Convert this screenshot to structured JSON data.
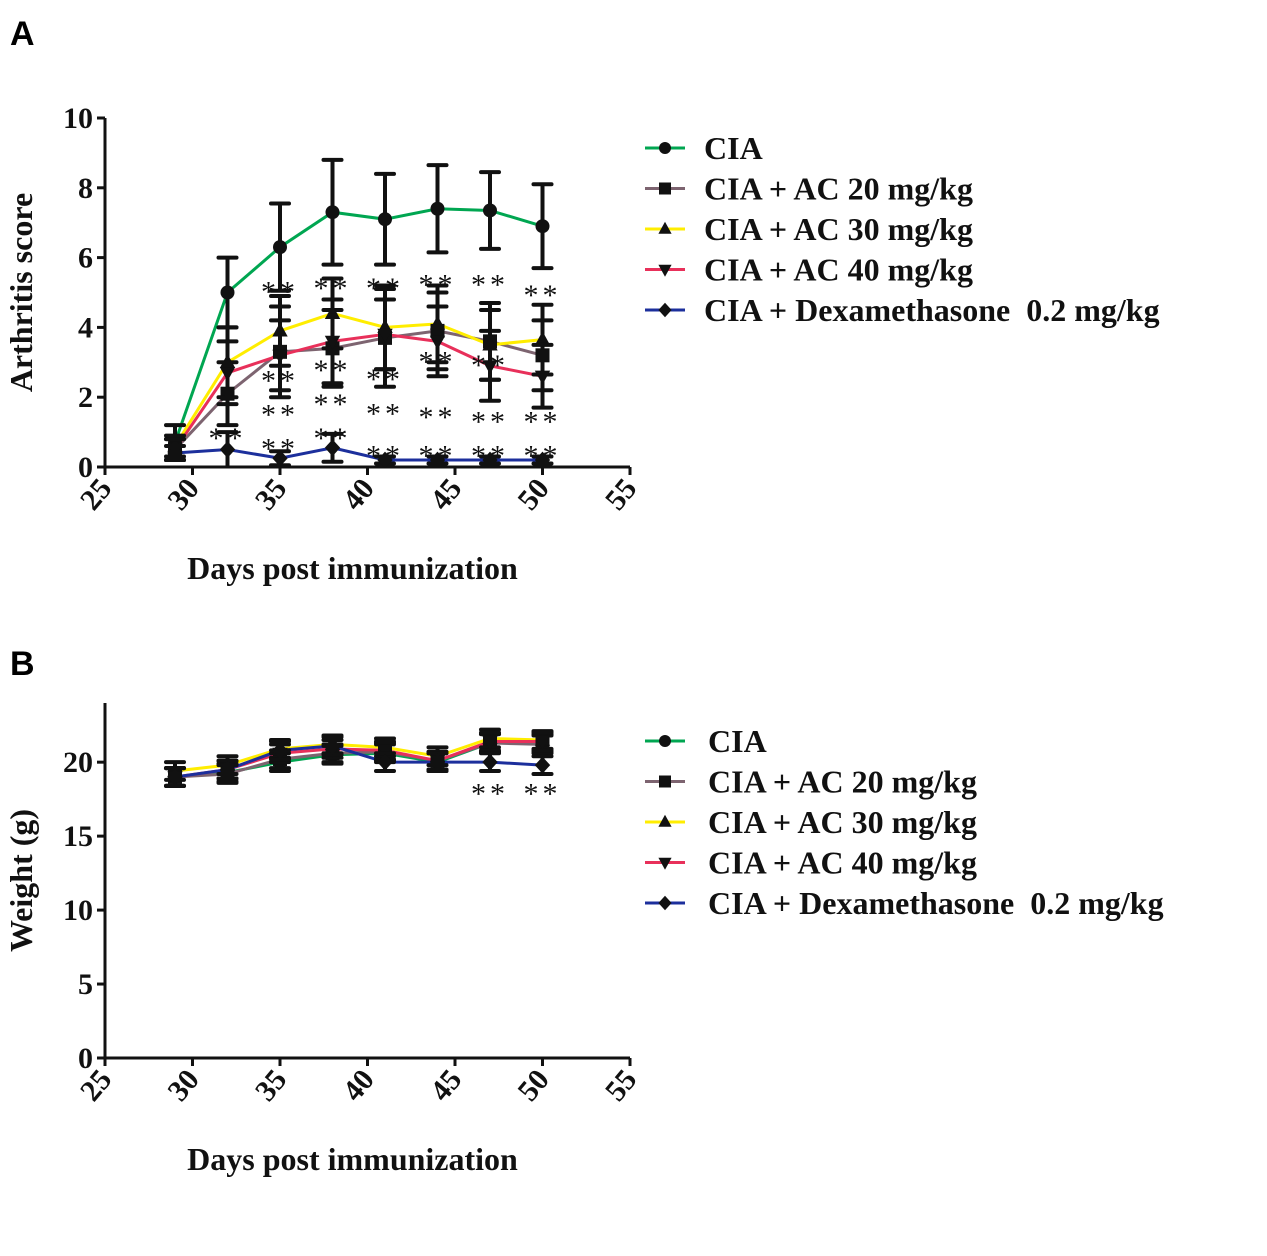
{
  "chart_data": [
    {
      "panel": "A",
      "type": "line",
      "xlabel": "Days post immunization",
      "ylabel": "Arthritis score",
      "xlim": [
        25,
        55
      ],
      "xticks": [
        25,
        30,
        35,
        40,
        45,
        50,
        55
      ],
      "ylim": [
        0,
        10
      ],
      "yticks": [
        0,
        2,
        4,
        6,
        8,
        10
      ],
      "x": [
        29,
        32,
        35,
        38,
        41,
        44,
        47,
        50
      ],
      "legend_position": "right",
      "series": [
        {
          "name": "CIA",
          "color": "#00a651",
          "marker": "circle",
          "values": [
            0.7,
            5.0,
            6.3,
            7.3,
            7.1,
            7.4,
            7.35,
            6.9
          ],
          "errors": [
            0.5,
            1.0,
            1.25,
            1.5,
            1.3,
            1.25,
            1.1,
            1.2
          ]
        },
        {
          "name": "CIA + AC 20 mg/kg",
          "color": "#7d6470",
          "marker": "square",
          "values": [
            0.5,
            2.1,
            3.3,
            3.4,
            3.7,
            3.9,
            3.6,
            3.2
          ],
          "errors": [
            0.3,
            0.9,
            1.3,
            1.1,
            1.4,
            1.1,
            1.1,
            1.0
          ]
        },
        {
          "name": "CIA + AC 30 mg/kg",
          "color": "#ffed00",
          "marker": "triangle-up",
          "values": [
            0.6,
            3.0,
            3.9,
            4.4,
            4.0,
            4.1,
            3.5,
            3.65
          ],
          "errors": [
            0.3,
            1.0,
            1.0,
            1.0,
            1.2,
            1.1,
            1.0,
            1.0
          ]
        },
        {
          "name": "CIA + AC 40 mg/kg",
          "color": "#e8305a",
          "marker": "triangle-down",
          "values": [
            0.5,
            2.7,
            3.2,
            3.6,
            3.8,
            3.6,
            2.9,
            2.6
          ],
          "errors": [
            0.3,
            0.9,
            1.0,
            1.2,
            1.0,
            1.0,
            1.0,
            0.9
          ]
        },
        {
          "name": "CIA + Dexamethasone  0.2 mg/kg",
          "color": "#1c2f9c",
          "marker": "diamond",
          "values": [
            0.4,
            0.5,
            0.25,
            0.55,
            0.2,
            0.2,
            0.2,
            0.2
          ],
          "errors": [
            0.2,
            0.5,
            0.2,
            0.4,
            0.1,
            0.1,
            0.1,
            0.1
          ]
        }
      ],
      "annotations": [
        {
          "text": "**",
          "x": 32,
          "y": 1.0
        },
        {
          "text": "**",
          "x": 35,
          "y": 5.2
        },
        {
          "text": "**",
          "x": 35,
          "y": 2.5
        },
        {
          "text": "**",
          "x": 35,
          "y": 1.4
        },
        {
          "text": "**",
          "x": 35,
          "y": 0.7
        },
        {
          "text": "**",
          "x": 38,
          "y": 5.3
        },
        {
          "text": "**",
          "x": 38,
          "y": 2.5
        },
        {
          "text": "**",
          "x": 38,
          "y": 1.5
        },
        {
          "text": "**",
          "x": 38,
          "y": 1.0
        },
        {
          "text": "**",
          "x": 41,
          "y": 5.3
        },
        {
          "text": "**",
          "x": 41,
          "y": 2.7
        },
        {
          "text": "**",
          "x": 41,
          "y": 1.7
        },
        {
          "text": "**",
          "x": 41,
          "y": 0.5
        },
        {
          "text": "**",
          "x": 44,
          "y": 5.4
        },
        {
          "text": "**",
          "x": 44,
          "y": 3.2
        },
        {
          "text": "**",
          "x": 44,
          "y": 1.6
        },
        {
          "text": "**",
          "x": 44,
          "y": 0.5
        },
        {
          "text": "**",
          "x": 47,
          "y": 5.4
        },
        {
          "text": "**",
          "x": 47,
          "y": 3.1
        },
        {
          "text": "**",
          "x": 47,
          "y": 1.2
        },
        {
          "text": "**",
          "x": 47,
          "y": 0.5
        },
        {
          "text": "**",
          "x": 50,
          "y": 5.1
        },
        {
          "text": "**",
          "x": 50,
          "y": 1.2
        },
        {
          "text": "**",
          "x": 50,
          "y": 0.5
        }
      ]
    },
    {
      "panel": "B",
      "type": "line",
      "xlabel": "Days post immunization",
      "ylabel": "Weight (g)",
      "xlim": [
        25,
        55
      ],
      "xticks": [
        25,
        30,
        35,
        40,
        45,
        50,
        55
      ],
      "ylim": [
        0,
        24
      ],
      "yticks": [
        0,
        5,
        10,
        15,
        20
      ],
      "x": [
        29,
        32,
        35,
        38,
        41,
        44,
        47,
        50
      ],
      "legend_position": "right",
      "series": [
        {
          "name": "CIA",
          "color": "#00a651",
          "marker": "circle",
          "values": [
            19.0,
            19.3,
            20.0,
            20.5,
            20.6,
            20.0,
            21.3,
            21.3
          ],
          "errors": [
            0.6,
            0.6,
            0.6,
            0.6,
            0.6,
            0.6,
            0.6,
            0.6
          ]
        },
        {
          "name": "CIA + AC 20 mg/kg",
          "color": "#7d6470",
          "marker": "square",
          "values": [
            19.0,
            19.2,
            20.2,
            20.6,
            20.7,
            20.1,
            21.3,
            21.2
          ],
          "errors": [
            0.6,
            0.6,
            0.6,
            0.6,
            0.6,
            0.6,
            0.6,
            0.6
          ]
        },
        {
          "name": "CIA + AC 30 mg/kg",
          "color": "#ffed00",
          "marker": "triangle-up",
          "values": [
            19.4,
            19.8,
            20.9,
            21.2,
            21.0,
            20.4,
            21.6,
            21.5
          ],
          "errors": [
            0.6,
            0.6,
            0.6,
            0.6,
            0.6,
            0.6,
            0.6,
            0.6
          ]
        },
        {
          "name": "CIA + AC 40 mg/kg",
          "color": "#e8305a",
          "marker": "triangle-down",
          "values": [
            19.0,
            19.5,
            20.6,
            20.9,
            20.8,
            20.1,
            21.4,
            21.4
          ],
          "errors": [
            0.6,
            0.6,
            0.6,
            0.6,
            0.6,
            0.6,
            0.6,
            0.6
          ]
        },
        {
          "name": "CIA + Dexamethasone  0.2 mg/kg",
          "color": "#1c2f9c",
          "marker": "diamond",
          "values": [
            19.0,
            19.5,
            20.8,
            21.1,
            20.0,
            20.0,
            20.0,
            19.8
          ],
          "errors": [
            0.6,
            0.6,
            0.6,
            0.6,
            0.6,
            0.6,
            0.6,
            0.6
          ]
        }
      ],
      "annotations": [
        {
          "text": "**",
          "x": 47,
          "y": 18.3
        },
        {
          "text": "**",
          "x": 50,
          "y": 18.3
        }
      ]
    }
  ]
}
